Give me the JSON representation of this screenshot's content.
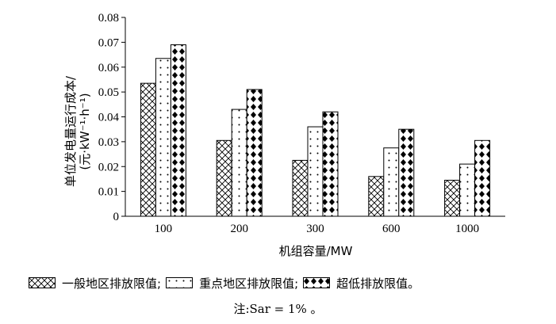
{
  "chart_data": {
    "type": "bar",
    "categories": [
      "100",
      "200",
      "300",
      "600",
      "1000"
    ],
    "series": [
      {
        "name": "一般地区排放限值",
        "values": [
          0.0535,
          0.0305,
          0.0225,
          0.016,
          0.0145
        ],
        "pattern": "crosshatch"
      },
      {
        "name": "重点地区排放限值",
        "values": [
          0.0635,
          0.043,
          0.036,
          0.0275,
          0.021
        ],
        "pattern": "dots"
      },
      {
        "name": "超低排放限值",
        "values": [
          0.069,
          0.051,
          0.042,
          0.035,
          0.0305
        ],
        "pattern": "diamonds"
      }
    ],
    "yticks": [
      "0",
      "0.01",
      "0.02",
      "0.03",
      "0.04",
      "0.05",
      "0.06",
      "0.07",
      "0.08"
    ],
    "ylim": [
      0,
      0.08
    ],
    "xlabel": "机组容量/MW",
    "ylabel_line1": "单位发电量运行成本/",
    "ylabel_line2": "(元·kW⁻¹·h⁻¹)",
    "legend_position": "bottom",
    "legend_labels": [
      "一般地区排放限值;",
      "重点地区排放限值;",
      "超低排放限值。"
    ],
    "note": "注:Sar = 1% 。"
  }
}
